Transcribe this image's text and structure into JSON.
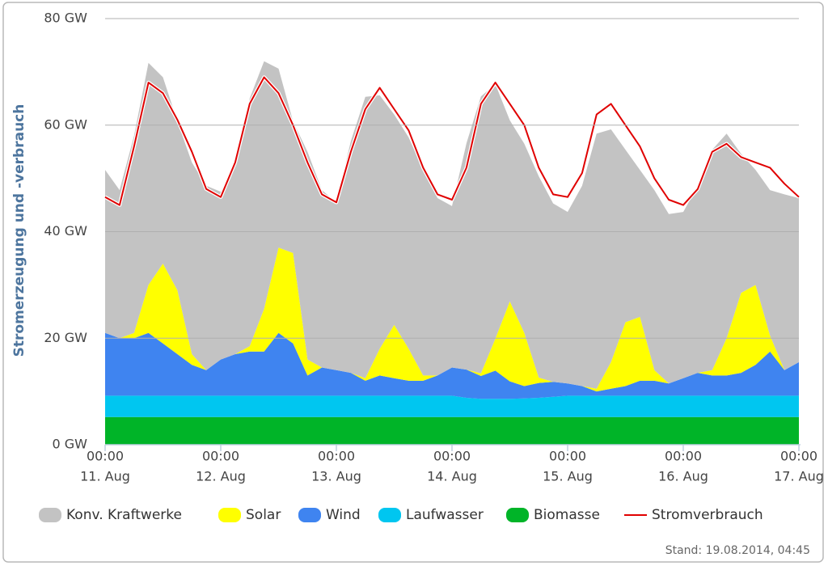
{
  "chart_data": {
    "type": "area",
    "stacked": true,
    "y_axis_title": "Stromerzeugung und -verbrauch",
    "footer": "Stand: 19.08.2014, 04:45",
    "grid": true,
    "legend_position": "bottom",
    "x": [
      "11. Aug 00:00",
      "11. Aug 03:00",
      "11. Aug 06:00",
      "11. Aug 09:00",
      "11. Aug 12:00",
      "11. Aug 15:00",
      "11. Aug 18:00",
      "11. Aug 21:00",
      "12. Aug 00:00",
      "12. Aug 03:00",
      "12. Aug 06:00",
      "12. Aug 09:00",
      "12. Aug 12:00",
      "12. Aug 15:00",
      "12. Aug 18:00",
      "12. Aug 21:00",
      "13. Aug 00:00",
      "13. Aug 03:00",
      "13. Aug 06:00",
      "13. Aug 09:00",
      "13. Aug 12:00",
      "13. Aug 15:00",
      "13. Aug 18:00",
      "13. Aug 21:00",
      "14. Aug 00:00",
      "14. Aug 03:00",
      "14. Aug 06:00",
      "14. Aug 09:00",
      "14. Aug 12:00",
      "14. Aug 15:00",
      "14. Aug 18:00",
      "14. Aug 21:00",
      "15. Aug 00:00",
      "15. Aug 03:00",
      "15. Aug 06:00",
      "15. Aug 09:00",
      "15. Aug 12:00",
      "15. Aug 15:00",
      "15. Aug 18:00",
      "15. Aug 21:00",
      "16. Aug 00:00",
      "16. Aug 03:00",
      "16. Aug 06:00",
      "16. Aug 09:00",
      "16. Aug 12:00",
      "16. Aug 15:00",
      "16. Aug 18:00",
      "16. Aug 21:00",
      "17. Aug 00:00"
    ],
    "xticks": [
      {
        "value": "11. Aug 00:00",
        "label": [
          "00:00",
          "11. Aug"
        ]
      },
      {
        "value": "12. Aug 00:00",
        "label": [
          "00:00",
          "12. Aug"
        ]
      },
      {
        "value": "13. Aug 00:00",
        "label": [
          "00:00",
          "13. Aug"
        ]
      },
      {
        "value": "14. Aug 00:00",
        "label": [
          "00:00",
          "14. Aug"
        ]
      },
      {
        "value": "15. Aug 00:00",
        "label": [
          "00:00",
          "15. Aug"
        ]
      },
      {
        "value": "16. Aug 00:00",
        "label": [
          "00:00",
          "16. Aug"
        ]
      },
      {
        "value": "17. Aug 00:00",
        "label": [
          "00:00",
          "17. Aug"
        ]
      }
    ],
    "ylim": [
      0,
      80
    ],
    "yticks": [
      {
        "value": 0,
        "label": "0 GW"
      },
      {
        "value": 20,
        "label": "20 GW"
      },
      {
        "value": 40,
        "label": "40 GW"
      },
      {
        "value": 60,
        "label": "60 GW"
      },
      {
        "value": 80,
        "label": "80 GW"
      }
    ],
    "series": [
      {
        "name": "Konv. Kraftwerke",
        "color": "#c3c3c3",
        "values": [
          30.6,
          27.8,
          37,
          41.7,
          35,
          31.7,
          36,
          34.6,
          31.5,
          36,
          46.5,
          46.5,
          33.6,
          24.7,
          39,
          33.3,
          31.5,
          43.5,
          52.8,
          47.6,
          39.5,
          39.7,
          38.6,
          33.3,
          30.3,
          42.5,
          52,
          47.8,
          34,
          35.5,
          37.8,
          33.5,
          32.2,
          37.6,
          47.9,
          43.7,
          32.4,
          27.6,
          33.8,
          31.8,
          31.2,
          35.1,
          41.4,
          38.4,
          26.1,
          21.6,
          27.3,
          33,
          30.8
        ]
      },
      {
        "name": "Solar",
        "color": "#ffff00",
        "values": [
          0,
          0,
          1,
          9,
          15,
          12,
          2,
          0,
          0,
          0,
          1,
          8,
          16,
          17,
          3,
          0,
          0,
          0,
          0.5,
          5,
          10,
          6,
          1,
          0,
          0,
          0,
          0.5,
          6,
          15,
          10,
          1,
          0,
          0,
          0,
          0.5,
          5,
          12,
          12,
          2,
          0,
          0,
          0,
          1,
          7,
          15,
          15,
          3,
          0,
          0
        ]
      },
      {
        "name": "Wind",
        "color": "#3f84f0",
        "values": [
          11.8,
          10.8,
          10.8,
          11.8,
          9.8,
          7.8,
          5.8,
          4.8,
          6.8,
          7.8,
          8.3,
          8.3,
          11.8,
          9.8,
          3.8,
          5.3,
          4.8,
          4.3,
          2.8,
          3.8,
          3.3,
          2.8,
          2.8,
          3.8,
          5.3,
          5.3,
          4.3,
          5.3,
          3.3,
          2.3,
          2.8,
          2.8,
          2.3,
          1.8,
          0.8,
          1.3,
          1.8,
          2.8,
          2.8,
          2.3,
          3.3,
          4.3,
          3.8,
          3.8,
          4.3,
          5.8,
          8.3,
          4.8,
          6.3
        ]
      },
      {
        "name": "Laufwasser",
        "color": "#00c6f0",
        "values": [
          4,
          4,
          4,
          4,
          4,
          4,
          4,
          4,
          4,
          4,
          4,
          4,
          4,
          4,
          4,
          4,
          4,
          4,
          4,
          4,
          4,
          4,
          4,
          4,
          4,
          3.6,
          3.4,
          3.4,
          3.4,
          3.5,
          3.6,
          3.8,
          4,
          4,
          4,
          4,
          4,
          4,
          4,
          4,
          4,
          4,
          4,
          4,
          4,
          4,
          4,
          4,
          4
        ]
      },
      {
        "name": "Biomasse",
        "color": "#00b428",
        "values": [
          5.2,
          5.2,
          5.2,
          5.2,
          5.2,
          5.2,
          5.2,
          5.2,
          5.2,
          5.2,
          5.2,
          5.2,
          5.2,
          5.2,
          5.2,
          5.2,
          5.2,
          5.2,
          5.2,
          5.2,
          5.2,
          5.2,
          5.2,
          5.2,
          5.2,
          5.2,
          5.2,
          5.2,
          5.2,
          5.2,
          5.2,
          5.2,
          5.2,
          5.2,
          5.2,
          5.2,
          5.2,
          5.2,
          5.2,
          5.2,
          5.2,
          5.2,
          5.2,
          5.2,
          5.2,
          5.2,
          5.2,
          5.2,
          5.2
        ]
      },
      {
        "name": "Stromverbrauch",
        "color": "#e00000",
        "type": "line",
        "values": [
          46.5,
          45,
          56,
          68,
          66,
          61,
          55,
          48,
          46.5,
          53,
          64,
          69,
          66,
          60,
          53,
          47,
          45.5,
          55,
          63,
          67,
          63,
          59,
          52,
          47,
          46,
          52,
          64,
          68,
          64,
          60,
          52,
          47,
          46.5,
          51,
          62,
          64,
          60,
          56,
          50,
          46,
          45,
          48,
          55,
          56.5,
          54,
          53,
          52,
          49,
          46.5
        ]
      }
    ]
  }
}
